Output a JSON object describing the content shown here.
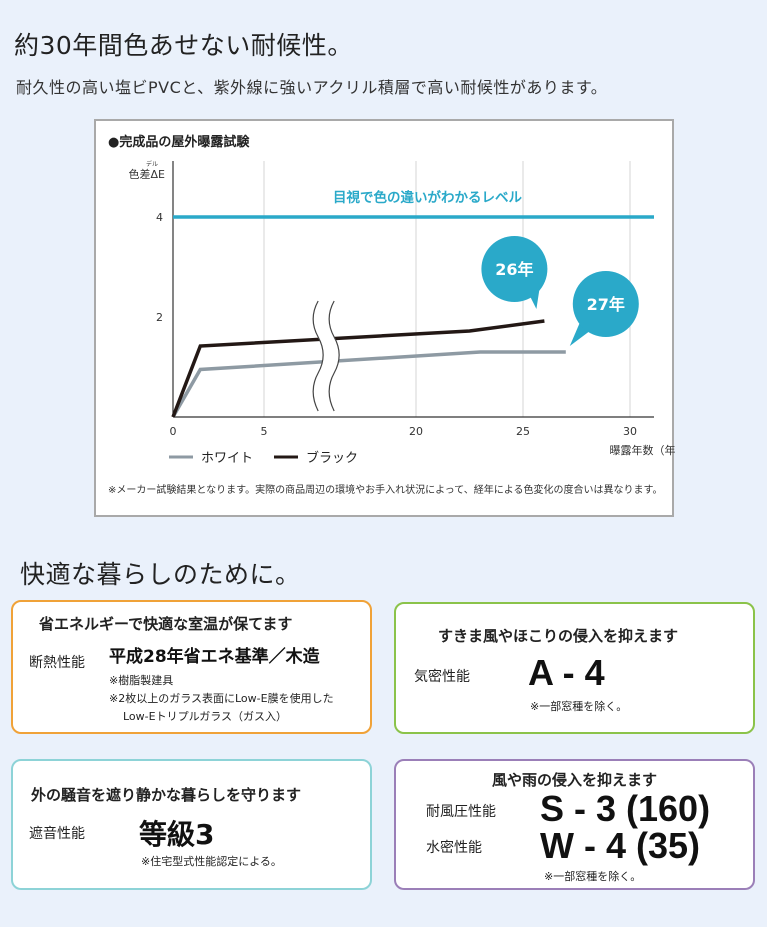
{
  "header": {
    "title": "約30年間色あせない耐候性。",
    "lead": "耐久性の高い塩ビPVCと、紫外線に強いアクリル積層で高い耐候性があります。"
  },
  "chart_data": {
    "type": "line",
    "title": "●完成品の屋外曝露試験",
    "ylabel": "色差ΔE",
    "ylabel_ruby": "デル",
    "xlabel": "曝露年数（年）",
    "xticks": [
      "0",
      "5",
      "20",
      "25",
      "30"
    ],
    "yticks": [
      "2",
      "4"
    ],
    "ylim": [
      0,
      4.5
    ],
    "axis_break": true,
    "reference_line": {
      "value": 4,
      "label": "目視で色の違いがわかるレベル",
      "color": "#2aa9c9"
    },
    "series": [
      {
        "name": "ホワイト",
        "color": "#8e9aa3",
        "x": [
          0,
          1.5,
          23,
          27
        ],
        "y": [
          0,
          0.95,
          1.3,
          1.3
        ]
      },
      {
        "name": "ブラック",
        "color": "#231815",
        "x": [
          0,
          1.5,
          22.5,
          26
        ],
        "y": [
          0,
          1.42,
          1.72,
          1.92
        ]
      }
    ],
    "callouts": [
      {
        "label": "26年",
        "color": "#2aa9c9"
      },
      {
        "label": "27年",
        "color": "#2aa9c9"
      }
    ],
    "legend_position": "bottom-left",
    "note": "※メーカー試験結果となります。実際の商品周辺の環境やお手入れ状況によって、経年による色変化の度合いは異なります。"
  },
  "section2": {
    "title": "快適な暮らしのために。"
  },
  "cards": {
    "insulation": {
      "heading": "省エネルギーで快適な室温が保てます",
      "label": "断熱性能",
      "value": "平成28年省エネ基準／木造",
      "note1": "※樹脂製建具",
      "note2": "※2枚以上のガラス表面にLow-E膜を使用した",
      "note3": "Low-Eトリプルガラス（ガス入）",
      "border_color": "#f0a238"
    },
    "airtight": {
      "heading": "すきま風やほこりの侵入を抑えます",
      "label": "気密性能",
      "value": "A - 4",
      "note": "※一部窓種を除く。",
      "border_color": "#8bc34a"
    },
    "sound": {
      "heading": "外の騒音を遮り静かな暮らしを守ります",
      "label": "遮音性能",
      "value": "等級3",
      "note": "※住宅型式性能認定による。",
      "border_color": "#8dd3d7"
    },
    "weather": {
      "heading": "風や雨の侵入を抑えます",
      "label1": "耐風圧性能",
      "value1": "S - 3 (160)",
      "label2": "水密性能",
      "value2": "W - 4 (35)",
      "note": "※一部窓種を除く。",
      "border_color": "#9b7fb8"
    }
  }
}
